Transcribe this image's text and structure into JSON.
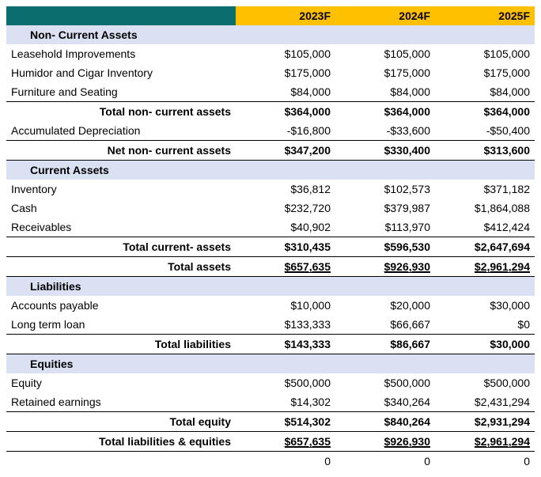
{
  "colors": {
    "header_left_bg": "#0a6e6e",
    "header_year_bg": "#ffc000",
    "section_bg": "#d9e1f2",
    "border": "#000000",
    "text": "#000000"
  },
  "years": [
    "2023F",
    "2024F",
    "2025F"
  ],
  "sections": {
    "non_current_assets": "Non- Current Assets",
    "current_assets": "Current Assets",
    "liabilities": "Liabilities",
    "equities": "Equities"
  },
  "rows": {
    "leasehold": {
      "label": "Leasehold Improvements",
      "v": [
        "$105,000",
        "$105,000",
        "$105,000"
      ]
    },
    "humidor": {
      "label": "Humidor and Cigar Inventory",
      "v": [
        "$175,000",
        "$175,000",
        "$175,000"
      ]
    },
    "furniture": {
      "label": "Furniture and Seating",
      "v": [
        "$84,000",
        "$84,000",
        "$84,000"
      ]
    },
    "total_nca": {
      "label": "Total non- current assets",
      "v": [
        "$364,000",
        "$364,000",
        "$364,000"
      ]
    },
    "accdep": {
      "label": "Accumulated Depreciation",
      "v": [
        "-$16,800",
        "-$33,600",
        "-$50,400"
      ]
    },
    "net_nca": {
      "label": "Net non- current assets",
      "v": [
        "$347,200",
        "$330,400",
        "$313,600"
      ]
    },
    "inventory": {
      "label": "Inventory",
      "v": [
        "$36,812",
        "$102,573",
        "$371,182"
      ]
    },
    "cash": {
      "label": "Cash",
      "v": [
        "$232,720",
        "$379,987",
        "$1,864,088"
      ]
    },
    "recv": {
      "label": "Receivables",
      "v": [
        "$40,902",
        "$113,970",
        "$412,424"
      ]
    },
    "total_ca": {
      "label": "Total current- assets",
      "v": [
        "$310,435",
        "$596,530",
        "$2,647,694"
      ]
    },
    "total_assets": {
      "label": "Total assets",
      "v": [
        "$657,635",
        "$926,930",
        "$2,961,294"
      ]
    },
    "ap": {
      "label": "Accounts payable",
      "v": [
        "$10,000",
        "$20,000",
        "$30,000"
      ]
    },
    "ltl": {
      "label": "Long term loan",
      "v": [
        "$133,333",
        "$66,667",
        "$0"
      ]
    },
    "total_liab": {
      "label": "Total liabilities",
      "v": [
        "$143,333",
        "$86,667",
        "$30,000"
      ]
    },
    "equity": {
      "label": "Equity",
      "v": [
        "$500,000",
        "$500,000",
        "$500,000"
      ]
    },
    "retained": {
      "label": "Retained earnings",
      "v": [
        "$14,302",
        "$340,264",
        "$2,431,294"
      ]
    },
    "total_eq": {
      "label": "Total equity",
      "v": [
        "$514,302",
        "$840,264",
        "$2,931,294"
      ]
    },
    "total_le": {
      "label": "Total liabilities & equities",
      "v": [
        "$657,635",
        "$926,930",
        "$2,961,294"
      ]
    },
    "check": {
      "label": "",
      "v": [
        "0",
        "0",
        "0"
      ]
    }
  }
}
